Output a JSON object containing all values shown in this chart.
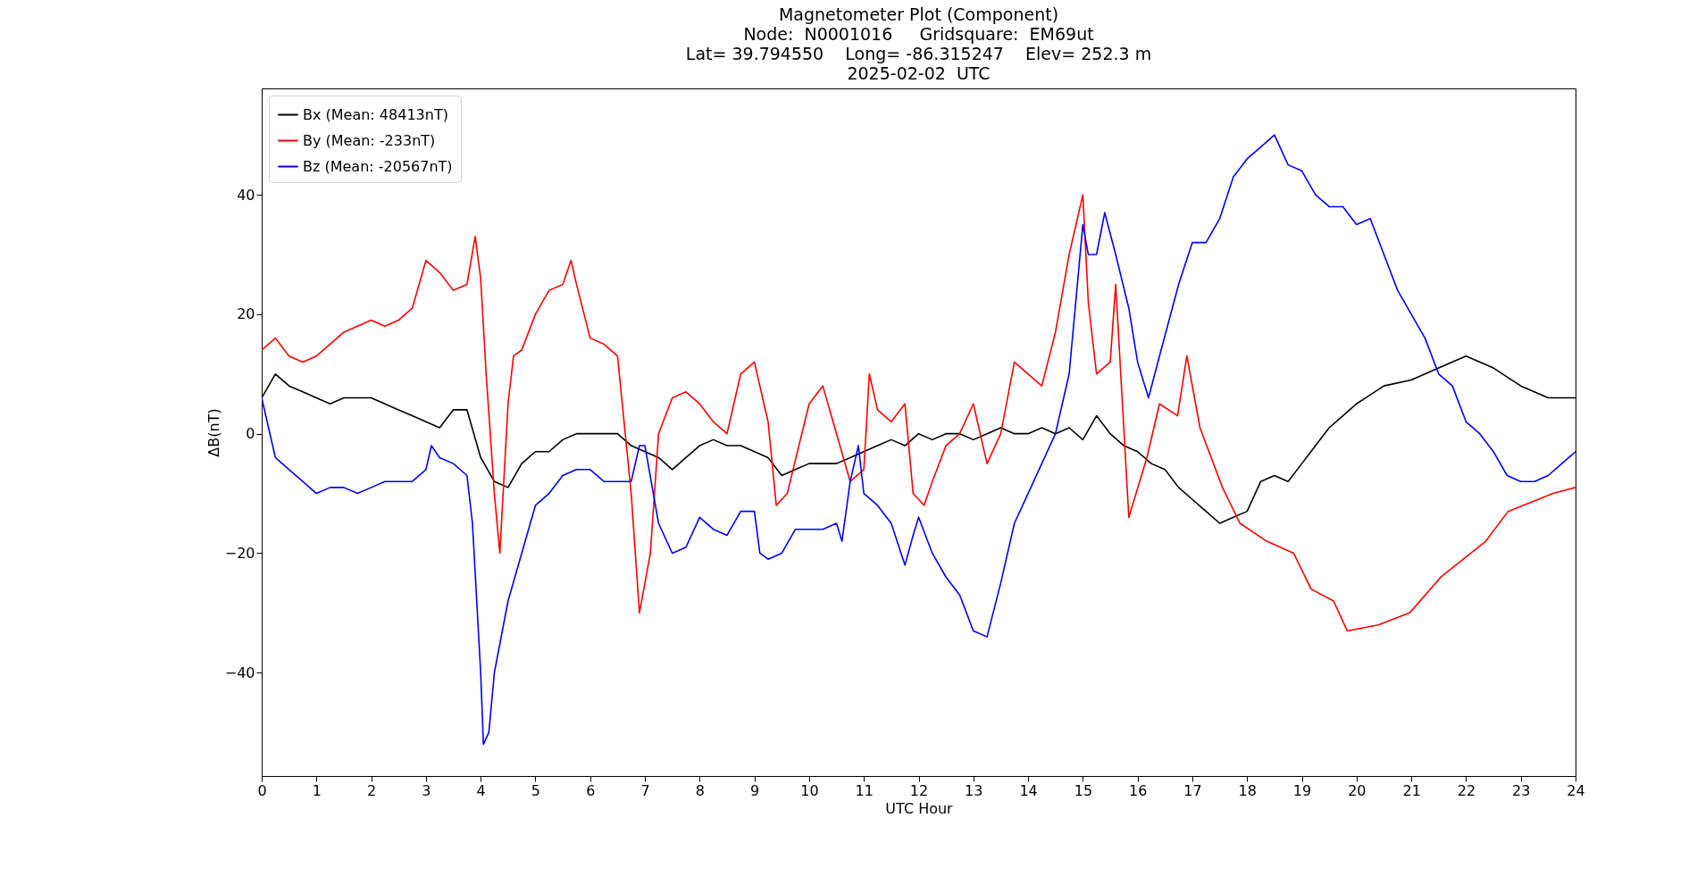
{
  "chart_data": {
    "type": "line",
    "title": "Magnetometer Plot (Component)\nNode:  N0001016     Gridsquare:  EM69ut\nLat= 39.794550    Long= -86.315247    Elev= 252.3 m\n2025-02-02  UTC",
    "xlabel": "UTC Hour",
    "ylabel": "ΔB(nT)",
    "xlim": [
      0,
      24
    ],
    "xticks": [
      0,
      1,
      2,
      3,
      4,
      5,
      6,
      7,
      8,
      9,
      10,
      11,
      12,
      13,
      14,
      15,
      16,
      17,
      18,
      19,
      20,
      21,
      22,
      23,
      24
    ],
    "ylim": [
      -57.3,
      57.8
    ],
    "yticks": [
      -40,
      -20,
      0,
      20,
      40
    ],
    "grid": false,
    "legend": "top left",
    "marker": "none",
    "line_style": "solid",
    "series": [
      {
        "name": "Bx (Mean: 48413nT)",
        "color": "#000000",
        "x": [
          0,
          0.25,
          0.5,
          0.75,
          1,
          1.25,
          1.5,
          1.75,
          2,
          2.25,
          2.5,
          2.75,
          3,
          3.25,
          3.5,
          3.75,
          4,
          4.25,
          4.5,
          4.75,
          5,
          5.25,
          5.5,
          5.75,
          6,
          6.25,
          6.5,
          6.75,
          7,
          7.25,
          7.5,
          7.75,
          8,
          8.25,
          8.5,
          8.75,
          9,
          9.25,
          9.5,
          9.75,
          10,
          10.25,
          10.5,
          10.75,
          11,
          11.25,
          11.5,
          11.75,
          12,
          12.25,
          12.5,
          12.75,
          13,
          13.25,
          13.5,
          13.75,
          14,
          14.25,
          14.5,
          14.75,
          15,
          15.25,
          15.5,
          15.75,
          16,
          16.25,
          16.5,
          16.75,
          17,
          17.25,
          17.5,
          17.75,
          18,
          18.25,
          18.5,
          18.75,
          19,
          19.25,
          19.5,
          19.75,
          20,
          20.5,
          21,
          21.5,
          22,
          22.5,
          23,
          23.5,
          24
        ],
        "values": [
          6,
          10,
          8,
          7,
          6,
          5,
          6,
          6,
          6,
          5,
          4,
          3,
          2,
          1,
          4,
          4,
          -4,
          -8,
          -9,
          -5,
          -3,
          -3,
          -1,
          0,
          0,
          0,
          0,
          -2,
          -3,
          -4,
          -6,
          -4,
          -2,
          -1,
          -2,
          -2,
          -3,
          -4,
          -7,
          -6,
          -5,
          -5,
          -5,
          -4,
          -3,
          -2,
          -1,
          -2,
          0,
          -1,
          0,
          0,
          -1,
          0,
          1,
          0,
          0,
          1,
          0,
          1,
          -1,
          3,
          0,
          -2,
          -3,
          -5,
          -6,
          -9,
          -11,
          -13,
          -15,
          -14,
          -13,
          -8,
          -7,
          -8,
          -5,
          -2,
          1,
          3,
          5,
          8,
          9,
          11,
          13,
          11,
          8,
          6,
          6
        ]
      },
      {
        "name": "By (Mean: -233nT)",
        "color": "#ff0000",
        "x": [
          0,
          0.25,
          0.5,
          0.75,
          1,
          1.25,
          1.5,
          1.75,
          2,
          2.25,
          2.5,
          2.75,
          3,
          3.25,
          3.5,
          3.75,
          3.9,
          4,
          4.1,
          4.25,
          4.35,
          4.5,
          4.6,
          4.75,
          5,
          5.25,
          5.5,
          5.65,
          5.75,
          6,
          6.25,
          6.5,
          6.75,
          6.9,
          7.1,
          7.25,
          7.5,
          7.75,
          8,
          8.25,
          8.5,
          8.75,
          9,
          9.25,
          9.4,
          9.6,
          10,
          10.25,
          10.5,
          10.75,
          11,
          11.1,
          11.25,
          11.5,
          11.75,
          11.9,
          12.1,
          12.25,
          12.5,
          12.75,
          13,
          13.25,
          13.5,
          13.75,
          14,
          14.25,
          14.5,
          14.75,
          15,
          15.1,
          15.25,
          15.5,
          15.6,
          15.84,
          16.17,
          16.4,
          16.73,
          16.9,
          17.14,
          17.55,
          17.87,
          18.36,
          18.85,
          19.17,
          19.58,
          19.83,
          20.4,
          20.97,
          21.54,
          22.36,
          22.77,
          23.59,
          24
        ],
        "values": [
          14,
          16,
          13,
          12,
          13,
          15,
          17,
          18,
          19,
          18,
          19,
          21,
          29,
          27,
          24,
          25,
          33,
          26,
          10,
          -10,
          -20,
          5,
          13,
          14,
          20,
          24,
          25,
          29,
          25,
          16,
          15,
          13,
          -10,
          -30,
          -20,
          0,
          6,
          7,
          5,
          2,
          0,
          10,
          12,
          2,
          -12,
          -10,
          5,
          8,
          0,
          -8,
          -6,
          10,
          4,
          2,
          5,
          -10,
          -12,
          -8,
          -2,
          0,
          5,
          -5,
          0,
          12,
          10,
          8,
          17,
          30,
          40,
          22,
          10,
          12,
          25,
          -14,
          -4,
          5,
          3,
          13,
          1,
          -9,
          -15,
          -18,
          -20,
          -26,
          -28,
          -33,
          -32,
          -30,
          -24,
          -18,
          -13,
          -10,
          -9
        ]
      },
      {
        "name": "Bz (Mean: -20567nT)",
        "color": "#0000ff",
        "x": [
          0,
          0.1,
          0.25,
          0.5,
          0.75,
          1,
          1.25,
          1.5,
          1.75,
          2,
          2.25,
          2.5,
          2.75,
          3,
          3.1,
          3.25,
          3.5,
          3.75,
          3.85,
          4,
          4.05,
          4.15,
          4.25,
          4.5,
          4.75,
          5,
          5.25,
          5.5,
          5.75,
          6,
          6.25,
          6.5,
          6.75,
          6.9,
          7,
          7.25,
          7.5,
          7.75,
          8,
          8.25,
          8.5,
          8.75,
          9,
          9.1,
          9.25,
          9.5,
          9.75,
          10,
          10.25,
          10.5,
          10.6,
          10.75,
          10.9,
          11,
          11.25,
          11.5,
          11.75,
          11.9,
          12,
          12.25,
          12.5,
          12.75,
          13,
          13.25,
          13.5,
          13.75,
          14,
          14.25,
          14.5,
          14.75,
          15,
          15.1,
          15.25,
          15.4,
          15.6,
          15.84,
          16,
          16.2,
          16.4,
          16.75,
          17,
          17.25,
          17.5,
          17.75,
          18,
          18.25,
          18.5,
          18.75,
          19,
          19.25,
          19.5,
          19.75,
          20,
          20.25,
          20.5,
          20.75,
          21,
          21.25,
          21.5,
          21.75,
          22,
          22.25,
          22.5,
          22.75,
          23,
          23.25,
          23.5,
          23.75,
          24
        ],
        "values": [
          6,
          2,
          -4,
          -6,
          -8,
          -10,
          -9,
          -9,
          -10,
          -9,
          -8,
          -8,
          -8,
          -6,
          -2,
          -4,
          -5,
          -7,
          -15,
          -40,
          -52,
          -50,
          -40,
          -28,
          -20,
          -12,
          -10,
          -7,
          -6,
          -6,
          -8,
          -8,
          -8,
          -2,
          -2,
          -15,
          -20,
          -19,
          -14,
          -16,
          -17,
          -13,
          -13,
          -20,
          -21,
          -20,
          -16,
          -16,
          -16,
          -15,
          -18,
          -8,
          -2,
          -10,
          -12,
          -15,
          -22,
          -17,
          -14,
          -20,
          -24,
          -27,
          -33,
          -34,
          -25,
          -15,
          -10,
          -5,
          0,
          10,
          35,
          30,
          30,
          37,
          30,
          21,
          12,
          6,
          13,
          25,
          32,
          32,
          36,
          43,
          46,
          48,
          50,
          45,
          44,
          40,
          38,
          38,
          35,
          36,
          30,
          24,
          20,
          16,
          10,
          8,
          2,
          0,
          -3,
          -7,
          -8,
          -8,
          -7,
          -5,
          -3
        ]
      }
    ]
  }
}
